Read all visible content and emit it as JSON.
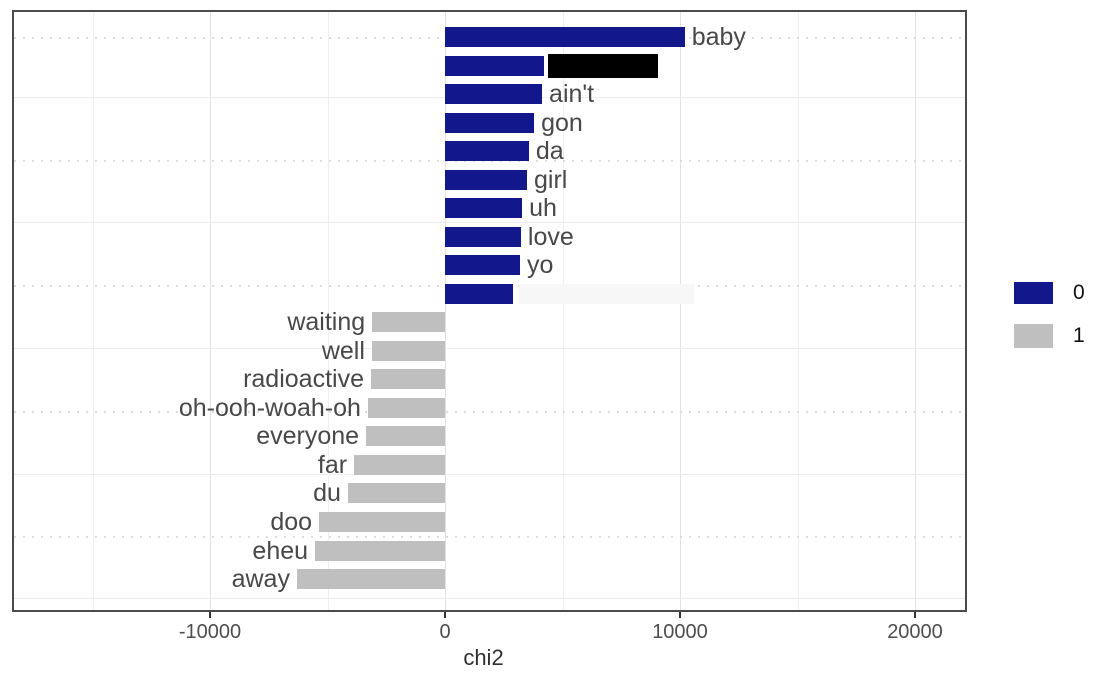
{
  "chart_data": {
    "type": "bar",
    "orientation": "horizontal",
    "title": "",
    "xlabel": "chi2",
    "ylabel": "",
    "xlim": [
      -18400,
      22200
    ],
    "x_ticks": [
      -10000,
      0,
      10000,
      20000
    ],
    "x_tick_labels": [
      "-10000",
      "0",
      "10000",
      "20000"
    ],
    "x_minor_gridlines": [
      -15000,
      -5000,
      5000,
      15000
    ],
    "grid": "light gray major gridlines; dotted horizontal minor gridlines; white background; dark panel border",
    "legend_position": "right-middle",
    "legend": {
      "title": "",
      "entries": [
        {
          "label": "0",
          "color": "#12188c"
        },
        {
          "label": "1",
          "color": "#bfbfbf"
        }
      ]
    },
    "colors": {
      "group0_bar": "#12188c",
      "group1_bar": "#bfbfbf",
      "censor_box": "#000000",
      "faint_box": "#f7f7f7",
      "bar_label_text": "#484848",
      "axis_text": "#4d4d4d",
      "axis_title_text": "#303030",
      "panel_border": "#4b4b4b"
    },
    "bars": [
      {
        "label": "baby",
        "value": 10200,
        "group": "0",
        "label_style": "text"
      },
      {
        "label": "",
        "value": 4210,
        "group": "0",
        "label_style": "black-box",
        "box": {
          "offset": 4,
          "width": 110,
          "height": 24
        }
      },
      {
        "label": "ain't",
        "value": 4130,
        "group": "0",
        "label_style": "text"
      },
      {
        "label": "gon",
        "value": 3790,
        "group": "0",
        "label_style": "text"
      },
      {
        "label": "da",
        "value": 3570,
        "group": "0",
        "label_style": "text"
      },
      {
        "label": "girl",
        "value": 3490,
        "group": "0",
        "label_style": "text"
      },
      {
        "label": "uh",
        "value": 3280,
        "group": "0",
        "label_style": "text"
      },
      {
        "label": "love",
        "value": 3230,
        "group": "0",
        "label_style": "text"
      },
      {
        "label": "yo",
        "value": 3190,
        "group": "0",
        "label_style": "text"
      },
      {
        "label": "",
        "value": 2890,
        "group": "0",
        "label_style": "faint-box",
        "box": {
          "offset": 6,
          "width": 175,
          "height": 20
        }
      },
      {
        "label": "waiting",
        "value": -3100,
        "group": "1",
        "label_style": "text"
      },
      {
        "label": "well",
        "value": -3110,
        "group": "1",
        "label_style": "text"
      },
      {
        "label": "radioactive",
        "value": -3150,
        "group": "1",
        "label_style": "text"
      },
      {
        "label": "oh-ooh-woah-oh",
        "value": -3280,
        "group": "1",
        "label_style": "text"
      },
      {
        "label": "everyone",
        "value": -3360,
        "group": "1",
        "label_style": "text"
      },
      {
        "label": "far",
        "value": -3870,
        "group": "1",
        "label_style": "text"
      },
      {
        "label": "du",
        "value": -4130,
        "group": "1",
        "label_style": "text"
      },
      {
        "label": "doo",
        "value": -5360,
        "group": "1",
        "label_style": "text"
      },
      {
        "label": "eheu",
        "value": -5530,
        "group": "1",
        "label_style": "text"
      },
      {
        "label": "away",
        "value": -6300,
        "group": "1",
        "label_style": "text"
      }
    ]
  }
}
